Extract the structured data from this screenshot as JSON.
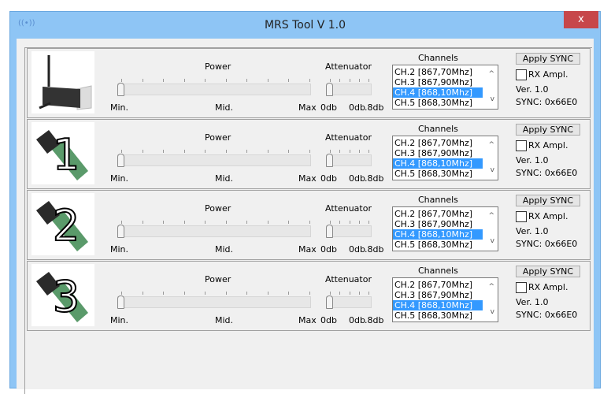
{
  "window": {
    "title": "MRS Tool V 1.0",
    "close_label": "x"
  },
  "labels": {
    "power": "Power",
    "attenuator": "Attenuator",
    "channels": "Channels",
    "min": "Min.",
    "mid": "Mid.",
    "max": "Max",
    "att_min": "0db",
    "att_mid": "0db",
    "att_max": ".8db"
  },
  "rows": [
    {
      "device": "base station",
      "number": "",
      "power_level": 0,
      "attenuator_level": 0,
      "channels": [
        "CH.2 [867,70Mhz]",
        "CH.3 [867,90Mhz]",
        "CH.4 [868,10Mhz]",
        "CH.5 [868,30Mhz]"
      ],
      "selected_channel": "CH.4 [868,10Mhz]",
      "apply_label": "Apply SYNC",
      "rx_label": "RX Ampl.",
      "rx_checked": false,
      "version": "Ver. 1.0",
      "sync": "SYNC: 0x66E0"
    },
    {
      "device": "receiver",
      "number": "1",
      "power_level": 0,
      "attenuator_level": 0,
      "channels": [
        "CH.2 [867,70Mhz]",
        "CH.3 [867,90Mhz]",
        "CH.4 [868,10Mhz]",
        "CH.5 [868,30Mhz]"
      ],
      "selected_channel": "CH.4 [868,10Mhz]",
      "apply_label": "Apply SYNC",
      "rx_label": "RX Ampl.",
      "rx_checked": false,
      "version": "Ver. 1.0",
      "sync": "SYNC: 0x66E0"
    },
    {
      "device": "receiver",
      "number": "2",
      "power_level": 0,
      "attenuator_level": 0,
      "channels": [
        "CH.2 [867,70Mhz]",
        "CH.3 [867,90Mhz]",
        "CH.4 [868,10Mhz]",
        "CH.5 [868,30Mhz]"
      ],
      "selected_channel": "CH.4 [868,10Mhz]",
      "apply_label": "Apply SYNC",
      "rx_label": "RX Ampl.",
      "rx_checked": false,
      "version": "Ver. 1.0",
      "sync": "SYNC: 0x66E0"
    },
    {
      "device": "receiver",
      "number": "3",
      "power_level": 0,
      "attenuator_level": 0,
      "channels": [
        "CH.2 [867,70Mhz]",
        "CH.3 [867,90Mhz]",
        "CH.4 [868,10Mhz]",
        "CH.5 [868,30Mhz]"
      ],
      "selected_channel": "CH.4 [868,10Mhz]",
      "apply_label": "Apply SYNC",
      "rx_label": "RX Ampl.",
      "rx_checked": false,
      "version": "Ver. 1.0",
      "sync": "SYNC: 0x66E0"
    }
  ],
  "colors": {
    "titlebar": "#8ec5f5",
    "close": "#c7474a",
    "selection": "#3399ff",
    "board": "#5a9a6a"
  }
}
